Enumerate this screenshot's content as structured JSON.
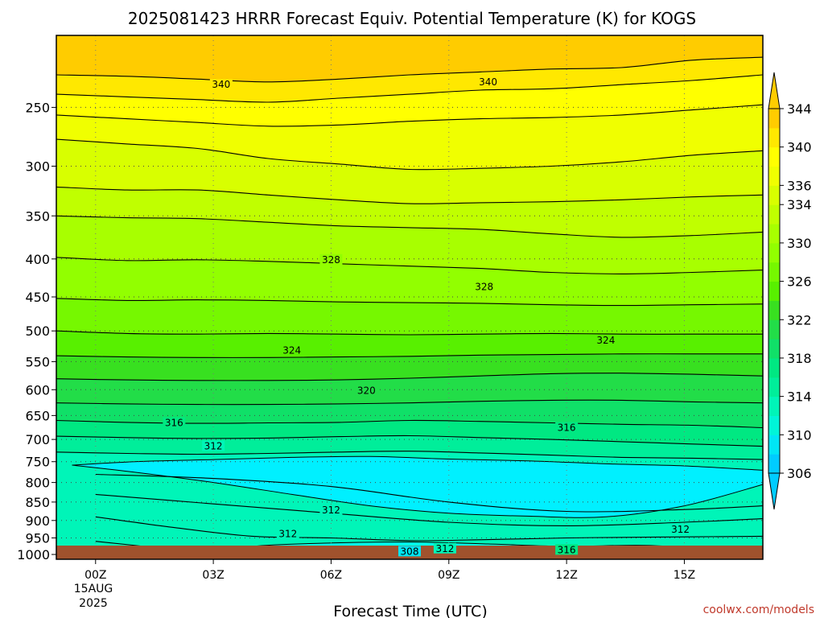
{
  "chart_data": {
    "type": "contour",
    "title": "2025081423 HRRR Forecast Equiv. Potential Temperature (K) for KOGS",
    "xlabel": "Forecast Time (UTC)",
    "ylabel": "",
    "date_line1": "15AUG",
    "date_line2": "2025",
    "credit": "coolwx.com/models",
    "x_range_hours": [
      -1,
      17
    ],
    "y_range_hpa": [
      1015,
      200
    ],
    "y_scale": "log",
    "grid": true,
    "x_ticks": [
      {
        "hour": 0,
        "label": "00Z"
      },
      {
        "hour": 3,
        "label": "03Z"
      },
      {
        "hour": 6,
        "label": "06Z"
      },
      {
        "hour": 9,
        "label": "09Z"
      },
      {
        "hour": 12,
        "label": "12Z"
      },
      {
        "hour": 15,
        "label": "15Z"
      }
    ],
    "y_ticks": [
      {
        "p": 250,
        "label": "250"
      },
      {
        "p": 300,
        "label": "300"
      },
      {
        "p": 350,
        "label": "350"
      },
      {
        "p": 400,
        "label": "400"
      },
      {
        "p": 450,
        "label": "450"
      },
      {
        "p": 500,
        "label": "500"
      },
      {
        "p": 550,
        "label": "550"
      },
      {
        "p": 600,
        "label": "600"
      },
      {
        "p": 650,
        "label": "650"
      },
      {
        "p": 700,
        "label": "700"
      },
      {
        "p": 750,
        "label": "750"
      },
      {
        "p": 800,
        "label": "800"
      },
      {
        "p": 850,
        "label": "850"
      },
      {
        "p": 900,
        "label": "900"
      },
      {
        "p": 950,
        "label": "950"
      },
      {
        "p": 1000,
        "label": "1000"
      }
    ],
    "colorbar": {
      "levels": [
        306,
        308,
        310,
        312,
        314,
        316,
        318,
        320,
        322,
        324,
        326,
        328,
        330,
        332,
        334,
        336,
        338,
        340,
        342,
        344
      ],
      "labels": [
        "306",
        "310",
        "314",
        "318",
        "322",
        "326",
        "330",
        "334",
        "336",
        "340",
        "344"
      ],
      "colors": [
        "#00ccff",
        "#00e6f5",
        "#00f5d8",
        "#00f5b8",
        "#00ee9a",
        "#00e882",
        "#10e068",
        "#22dd48",
        "#38e020",
        "#58f000",
        "#76f800",
        "#92ff00",
        "#a8ff00",
        "#c0ff00",
        "#d8ff00",
        "#f0ff00",
        "#ffff00",
        "#ffe800",
        "#ffcc00"
      ]
    },
    "contours": [
      {
        "value": 342,
        "p": [
          226,
          227,
          229,
          231,
          229,
          226,
          224,
          222,
          221,
          216,
          214
        ]
      },
      {
        "value": 340,
        "p": [
          240,
          242,
          244,
          246,
          243,
          240,
          237,
          236,
          233,
          230,
          226
        ]
      },
      {
        "value": 338,
        "p": [
          256,
          259,
          262,
          265,
          264,
          261,
          259,
          258,
          256,
          252,
          248
        ]
      },
      {
        "value": 336,
        "p": [
          276,
          280,
          284,
          293,
          298,
          303,
          302,
          300,
          296,
          290,
          286
        ]
      },
      {
        "value": 334,
        "p": [
          320,
          323,
          323,
          328,
          333,
          337,
          336,
          335,
          333,
          330,
          328
        ]
      },
      {
        "value": 332,
        "p": [
          350,
          352,
          353,
          357,
          361,
          363,
          365,
          370,
          374,
          372,
          368
        ]
      },
      {
        "value": 330,
        "p": [
          398,
          402,
          401,
          403,
          406,
          409,
          412,
          417,
          419,
          417,
          414
        ]
      },
      {
        "value": 328,
        "p": [
          452,
          455,
          454,
          455,
          457,
          458,
          459,
          461,
          462,
          461,
          460
        ]
      },
      {
        "value": 326,
        "p": [
          500,
          504,
          505,
          504,
          505,
          506,
          505,
          504,
          505,
          505,
          505
        ]
      },
      {
        "value": 324,
        "p": [
          540,
          542,
          543,
          543,
          542,
          541,
          539,
          538,
          537,
          537,
          537
        ]
      },
      {
        "value": 322,
        "p": [
          580,
          582,
          583,
          583,
          582,
          579,
          575,
          571,
          570,
          572,
          575
        ]
      },
      {
        "value": 320,
        "p": [
          625,
          627,
          628,
          628,
          627,
          625,
          622,
          620,
          620,
          623,
          625
        ]
      },
      {
        "value": 318,
        "p": [
          660,
          664,
          666,
          665,
          664,
          660,
          662,
          665,
          668,
          670,
          675
        ]
      },
      {
        "value": 316,
        "p": [
          693,
          696,
          698,
          697,
          694,
          692,
          696,
          700,
          705,
          710,
          715
        ]
      },
      {
        "value": 314,
        "p": [
          728,
          731,
          733,
          731,
          728,
          726,
          730,
          735,
          740,
          742,
          745
        ]
      }
    ],
    "contour_labels": [
      {
        "hour": 3.2,
        "p": 233,
        "text": "340"
      },
      {
        "hour": 10.0,
        "p": 231,
        "text": "340"
      },
      {
        "hour": 6.0,
        "p": 401,
        "text": "328"
      },
      {
        "hour": 9.9,
        "p": 436,
        "text": "328"
      },
      {
        "hour": 5.0,
        "p": 531,
        "text": "324"
      },
      {
        "hour": 13.0,
        "p": 515,
        "text": "324"
      },
      {
        "hour": 6.9,
        "p": 602,
        "text": "320"
      },
      {
        "hour": 2.0,
        "p": 665,
        "text": "316"
      },
      {
        "hour": 12.0,
        "p": 675,
        "text": "316"
      },
      {
        "hour": 3.0,
        "p": 715,
        "text": "312"
      },
      {
        "hour": 6.0,
        "p": 872,
        "text": "312"
      },
      {
        "hour": 4.9,
        "p": 938,
        "text": "312"
      },
      {
        "hour": 14.9,
        "p": 925,
        "text": "312"
      },
      {
        "hour": 8.9,
        "p": 982,
        "text": "312"
      },
      {
        "hour": 8.0,
        "p": 991,
        "text": "308"
      },
      {
        "hour": 12.0,
        "p": 986,
        "text": "316"
      }
    ]
  }
}
